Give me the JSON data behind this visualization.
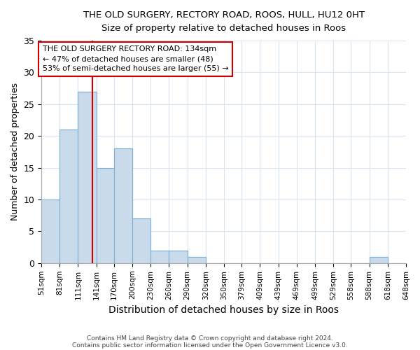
{
  "title1": "THE OLD SURGERY, RECTORY ROAD, ROOS, HULL, HU12 0HT",
  "title2": "Size of property relative to detached houses in Roos",
  "xlabel": "Distribution of detached houses by size in Roos",
  "ylabel": "Number of detached properties",
  "bin_labels": [
    "51sqm",
    "81sqm",
    "111sqm",
    "141sqm",
    "170sqm",
    "200sqm",
    "230sqm",
    "260sqm",
    "290sqm",
    "320sqm",
    "350sqm",
    "379sqm",
    "409sqm",
    "439sqm",
    "469sqm",
    "499sqm",
    "529sqm",
    "558sqm",
    "588sqm",
    "618sqm",
    "648sqm"
  ],
  "bar_values": [
    10,
    21,
    27,
    15,
    18,
    7,
    2,
    2,
    1,
    0,
    0,
    0,
    0,
    0,
    0,
    0,
    0,
    0,
    1,
    0
  ],
  "bar_color": "#c9daea",
  "bar_edge_color": "#7aafd4",
  "grid_color": "#d8e4f0",
  "vline_color": "#cc0000",
  "vline_x": 134,
  "bin_edges": [
    51,
    81,
    111,
    141,
    170,
    200,
    230,
    260,
    290,
    320,
    350,
    379,
    409,
    439,
    469,
    499,
    529,
    558,
    588,
    618,
    648
  ],
  "ylim": [
    0,
    35
  ],
  "annotation_text": "THE OLD SURGERY RECTORY ROAD: 134sqm\n← 47% of detached houses are smaller (48)\n53% of semi-detached houses are larger (55) →",
  "annotation_box_color": "#ffffff",
  "annotation_box_edge": "#cc0000",
  "footnote1": "Contains HM Land Registry data © Crown copyright and database right 2024.",
  "footnote2": "Contains public sector information licensed under the Open Government Licence v3.0."
}
